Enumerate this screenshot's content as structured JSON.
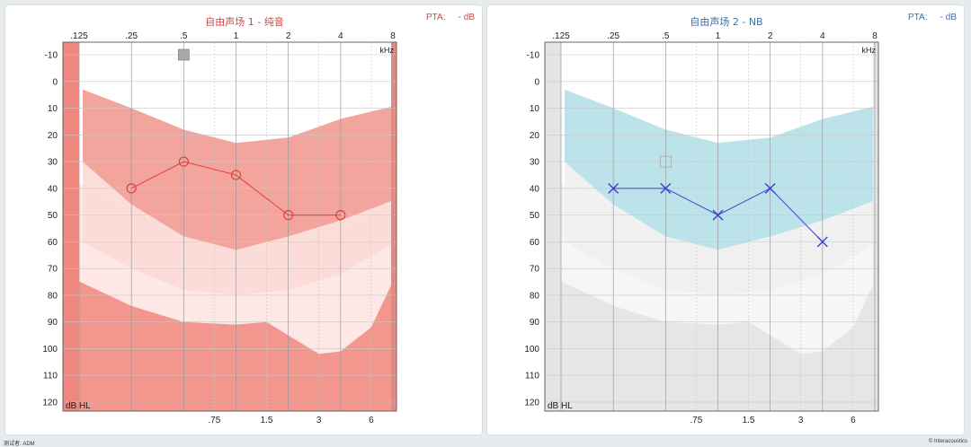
{
  "panels": [
    {
      "title": "自由声场 1 - 纯音",
      "pta_label": "PTA:",
      "pta_value": "- dB",
      "theme_color": "#c84a4a",
      "title_color": "#c84a4a",
      "speech_banana_color": "#f3a49c",
      "outer_band_color": "#fbdad6",
      "side_bar_color": "#f0877f",
      "bottom_region_color": "#f3968d",
      "light_region_color": "#fde8e5"
    },
    {
      "title": "自由声场 2 - NB",
      "pta_label": "PTA:",
      "pta_value": "- dB",
      "theme_color": "#3a6fb0",
      "title_color": "#3a6fb0",
      "speech_banana_color": "#bde3ea",
      "outer_band_color": "#f0f0f0",
      "side_bar_color": "#e4e4e4",
      "bottom_region_color": "#e6e6e6",
      "light_region_color": "#f6f6f6"
    }
  ],
  "axis": {
    "unit_label": "kHz",
    "y_unit_label": "dB HL"
  },
  "footer": {
    "left": "测试者: ADM",
    "right": "© Interacoustics"
  },
  "chart_data": [
    {
      "type": "scatter",
      "title": "自由声场 1 - 纯音",
      "x_ticks_top": [
        ".125",
        ".25",
        ".5",
        "1",
        "2",
        "4",
        "8"
      ],
      "x_ticks_bottom": [
        ".75",
        "1.5",
        "3",
        "6"
      ],
      "x_values_top": [
        0.125,
        0.25,
        0.5,
        1,
        2,
        4,
        8
      ],
      "x_values_bottom": [
        0.75,
        1.5,
        3,
        6
      ],
      "y_ticks": [
        "-10",
        "0",
        "10",
        "20",
        "30",
        "40",
        "50",
        "60",
        "70",
        "80",
        "90",
        "100",
        "110",
        "120"
      ],
      "xlim": [
        0.125,
        8
      ],
      "ylim": [
        -10,
        120
      ],
      "x_scale": "log2",
      "y_inverted": true,
      "grid": true,
      "series": [
        {
          "marker": "circle",
          "color": "#e0403a",
          "points": [
            {
              "x": 0.25,
              "y": 40
            },
            {
              "x": 0.5,
              "y": 30
            },
            {
              "x": 1,
              "y": 35
            },
            {
              "x": 2,
              "y": 50
            },
            {
              "x": 4,
              "y": 50
            }
          ]
        },
        {
          "marker": "filled-square",
          "color": "#a8a8a8",
          "points": [
            {
              "x": 0.5,
              "y": -10
            }
          ]
        }
      ]
    },
    {
      "type": "scatter",
      "title": "自由声场 2 - NB",
      "x_ticks_top": [
        ".125",
        ".25",
        ".5",
        "1",
        "2",
        "4",
        "8"
      ],
      "x_ticks_bottom": [
        ".75",
        "1.5",
        "3",
        "6"
      ],
      "x_values_top": [
        0.125,
        0.25,
        0.5,
        1,
        2,
        4,
        8
      ],
      "x_values_bottom": [
        0.75,
        1.5,
        3,
        6
      ],
      "y_ticks": [
        "-10",
        "0",
        "10",
        "20",
        "30",
        "40",
        "50",
        "60",
        "70",
        "80",
        "90",
        "100",
        "110",
        "120"
      ],
      "xlim": [
        0.125,
        8
      ],
      "ylim": [
        -10,
        120
      ],
      "x_scale": "log2",
      "y_inverted": true,
      "grid": true,
      "series": [
        {
          "marker": "x",
          "color": "#3b3fd6",
          "points": [
            {
              "x": 0.25,
              "y": 40
            },
            {
              "x": 0.5,
              "y": 40
            },
            {
              "x": 1,
              "y": 50
            },
            {
              "x": 2,
              "y": 40
            },
            {
              "x": 4,
              "y": 60
            }
          ]
        },
        {
          "marker": "open-square",
          "color": "#b0b0b0",
          "points": [
            {
              "x": 0.5,
              "y": 30
            }
          ]
        }
      ]
    }
  ]
}
